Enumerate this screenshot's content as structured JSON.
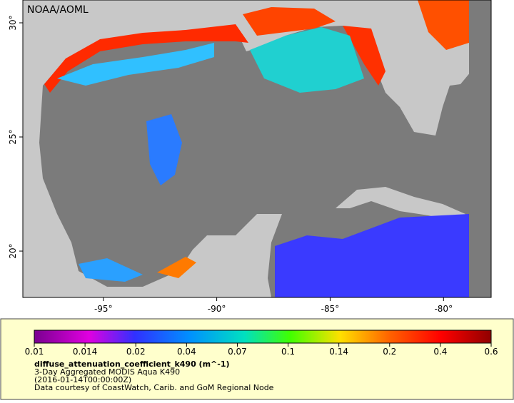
{
  "map": {
    "credit": "NOAA/AOML",
    "xlim": [
      -98.55,
      -77.9
    ],
    "ylim": [
      17.97,
      31
    ],
    "xticks": [
      {
        "value": -95,
        "label": "-95°"
      },
      {
        "value": -90,
        "label": "-90°"
      },
      {
        "value": -85,
        "label": "-85°"
      },
      {
        "value": -80,
        "label": "-80°"
      }
    ],
    "yticks": [
      {
        "value": 30,
        "label": "30°"
      },
      {
        "value": 25,
        "label": "25°"
      },
      {
        "value": 20,
        "label": "20°"
      }
    ]
  },
  "legend": {
    "colorbar_ticks": [
      0.01,
      0.014,
      0.02,
      0.04,
      0.07,
      0.1,
      0.14,
      0.2,
      0.4,
      0.6
    ],
    "variable": "diffuse_attenuation_coefficient_k490 (m^-1)",
    "description": "3-Day Aggregated MODIS Aqua K490",
    "time": "(2016-01-14T00:00:00Z)",
    "source": "Data courtesy of CoastWatch, Carib. and GoM Regional Node"
  }
}
